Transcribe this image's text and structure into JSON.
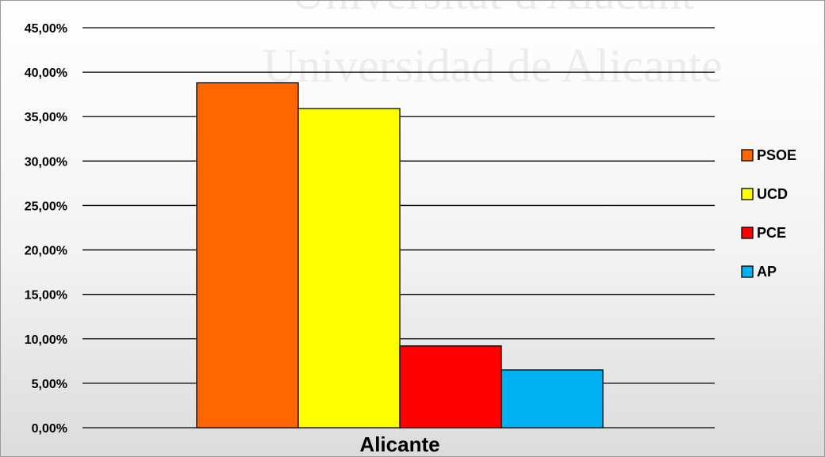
{
  "watermark": {
    "line1": "Universitat d'Alacant",
    "line2": "Universidad de Alicante"
  },
  "chart_data": {
    "type": "bar",
    "categories": [
      "Alicante"
    ],
    "series": [
      {
        "name": "PSOE",
        "values": [
          38.8
        ],
        "color": "#ff6600"
      },
      {
        "name": "UCD",
        "values": [
          35.9
        ],
        "color": "#ffff00"
      },
      {
        "name": "PCE",
        "values": [
          9.2
        ],
        "color": "#ff0000"
      },
      {
        "name": "AP",
        "values": [
          6.5
        ],
        "color": "#00b0f0"
      }
    ],
    "ylim": [
      0,
      45
    ],
    "yticks": [
      "0,00%",
      "5,00%",
      "10,00%",
      "15,00%",
      "20,00%",
      "25,00%",
      "30,00%",
      "35,00%",
      "40,00%",
      "45,00%"
    ],
    "title": "",
    "xlabel": "",
    "ylabel": "",
    "grid": true,
    "legend_position": "right"
  }
}
